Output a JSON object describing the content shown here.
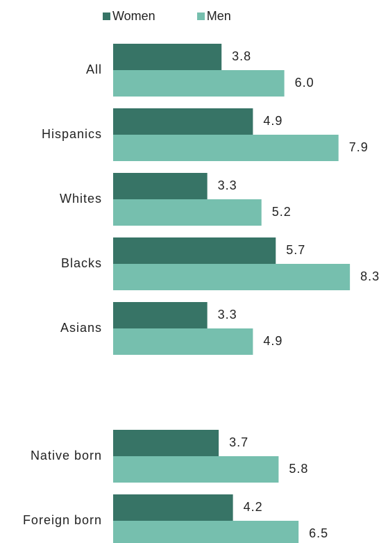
{
  "colors": {
    "women": "#377466",
    "men": "#76bfae",
    "text": "#222222"
  },
  "legend": {
    "women_label": "Women",
    "men_label": "Men"
  },
  "chart_data": {
    "type": "bar",
    "orientation": "horizontal",
    "categories": [
      "All",
      "Hispanics",
      "Whites",
      "Blacks",
      "Asians",
      "Native born",
      "Foreign born"
    ],
    "series": [
      {
        "name": "Women",
        "values": [
          3.8,
          4.9,
          3.3,
          5.7,
          3.3,
          3.7,
          4.2
        ],
        "labels": [
          "3.8",
          "4.9",
          "3.3",
          "5.7",
          "3.3",
          "3.7",
          "4.2"
        ]
      },
      {
        "name": "Men",
        "values": [
          6.0,
          7.9,
          5.2,
          8.3,
          4.9,
          5.8,
          6.5
        ],
        "labels": [
          "6.0",
          "7.9",
          "5.2",
          "8.3",
          "4.9",
          "5.8",
          "6.5"
        ]
      }
    ],
    "groups": [
      {
        "categories": [
          "All",
          "Hispanics",
          "Whites",
          "Blacks",
          "Asians"
        ]
      },
      {
        "categories": [
          "Native born",
          "Foreign born"
        ]
      }
    ],
    "legend_position": "top",
    "grid": false,
    "xlim": [
      0,
      8.3
    ]
  }
}
